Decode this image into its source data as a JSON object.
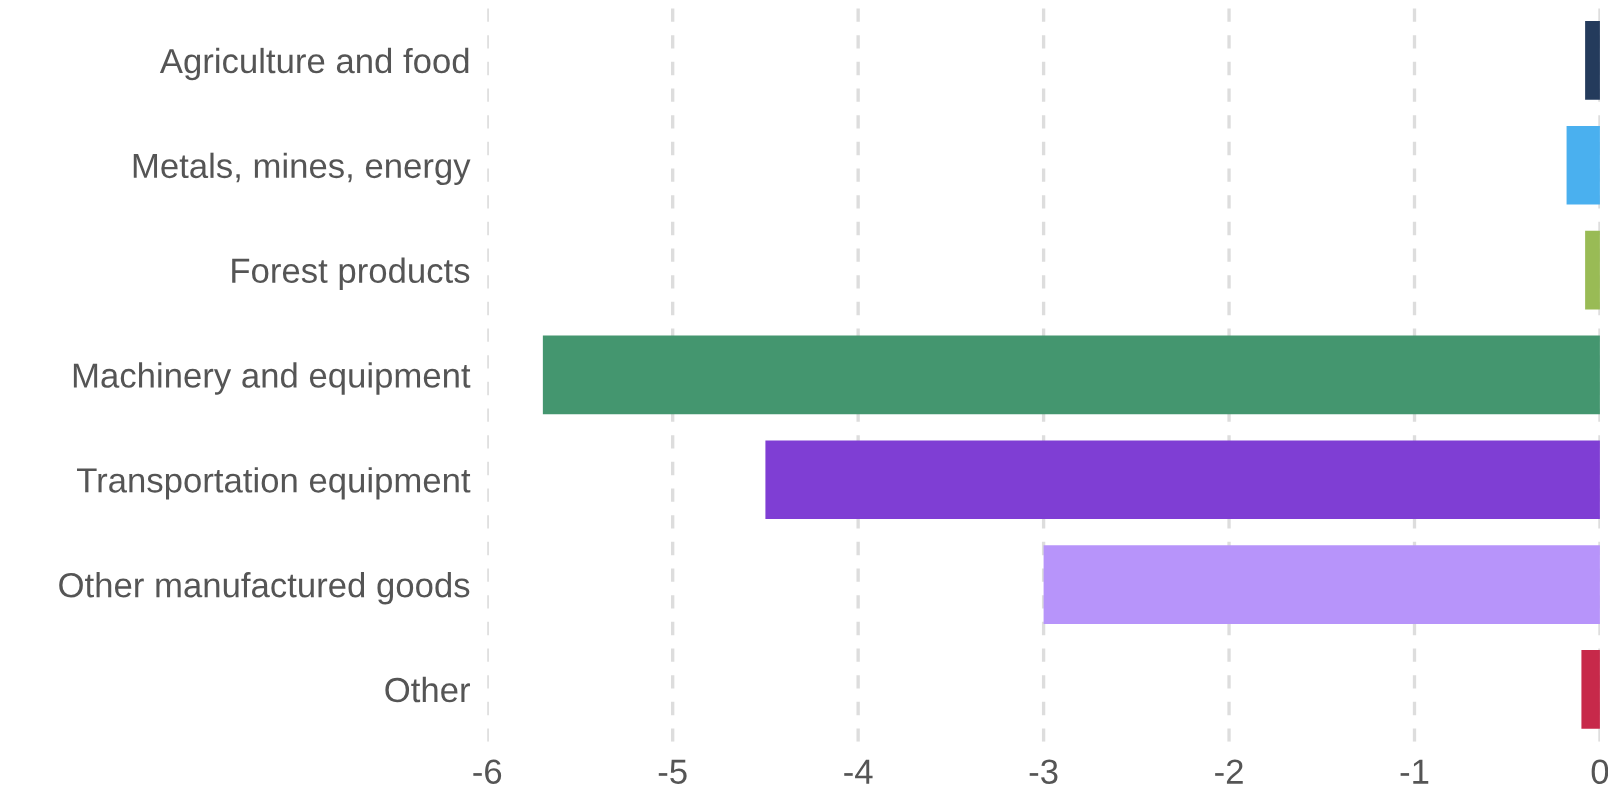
{
  "chart_data": {
    "type": "bar",
    "orientation": "horizontal",
    "categories": [
      "Agriculture and food",
      "Metals, mines, energy",
      "Forest products",
      "Machinery and equipment",
      "Transportation equipment",
      "Other manufactured goods",
      "Other"
    ],
    "values": [
      -0.08,
      -0.18,
      -0.08,
      -5.7,
      -4.5,
      -3.0,
      -0.1
    ],
    "colors": [
      "#243b5c",
      "#4ab0ef",
      "#99bb55",
      "#44966f",
      "#7f3ed4",
      "#b794fa",
      "#c7294a"
    ],
    "xlim": [
      -6,
      0
    ],
    "xticks": [
      -6,
      -5,
      -4,
      -3,
      -2,
      -1,
      0
    ],
    "grid": "x"
  }
}
